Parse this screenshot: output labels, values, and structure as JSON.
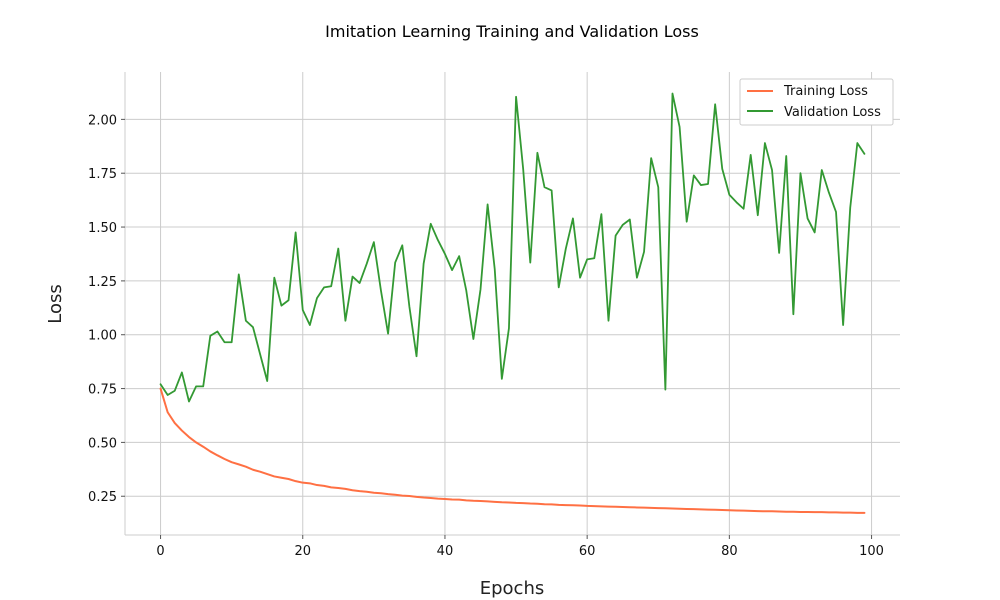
{
  "chart_data": {
    "type": "line",
    "title": "Imitation Learning Training and Validation Loss",
    "xlabel": "Epochs",
    "ylabel": "Loss",
    "xlim": [
      -5,
      104
    ],
    "ylim": [
      0.07,
      2.22
    ],
    "xticks": [
      0,
      20,
      40,
      60,
      80,
      100
    ],
    "yticks": [
      0.25,
      0.5,
      0.75,
      1.0,
      1.25,
      1.5,
      1.75,
      2.0
    ],
    "ytick_labels": [
      "0.25",
      "0.50",
      "0.75",
      "1.00",
      "1.25",
      "1.50",
      "1.75",
      "2.00"
    ],
    "grid": true,
    "legend_position": "top-right",
    "x": [
      0,
      1,
      2,
      3,
      4,
      5,
      6,
      7,
      8,
      9,
      10,
      11,
      12,
      13,
      14,
      15,
      16,
      17,
      18,
      19,
      20,
      21,
      22,
      23,
      24,
      25,
      26,
      27,
      28,
      29,
      30,
      31,
      32,
      33,
      34,
      35,
      36,
      37,
      38,
      39,
      40,
      41,
      42,
      43,
      44,
      45,
      46,
      47,
      48,
      49,
      50,
      51,
      52,
      53,
      54,
      55,
      56,
      57,
      58,
      59,
      60,
      61,
      62,
      63,
      64,
      65,
      66,
      67,
      68,
      69,
      70,
      71,
      72,
      73,
      74,
      75,
      76,
      77,
      78,
      79,
      80,
      81,
      82,
      83,
      84,
      85,
      86,
      87,
      88,
      89,
      90,
      91,
      92,
      93,
      94,
      95,
      96,
      97,
      98,
      99
    ],
    "series": [
      {
        "name": "Training Loss",
        "color": "#ff7043",
        "values": [
          0.75,
          0.64,
          0.59,
          0.555,
          0.525,
          0.5,
          0.48,
          0.458,
          0.44,
          0.423,
          0.408,
          0.398,
          0.387,
          0.373,
          0.364,
          0.353,
          0.342,
          0.336,
          0.33,
          0.32,
          0.313,
          0.31,
          0.302,
          0.298,
          0.291,
          0.288,
          0.284,
          0.278,
          0.274,
          0.271,
          0.266,
          0.264,
          0.26,
          0.257,
          0.253,
          0.251,
          0.247,
          0.244,
          0.242,
          0.239,
          0.237,
          0.235,
          0.234,
          0.231,
          0.229,
          0.228,
          0.226,
          0.224,
          0.222,
          0.221,
          0.219,
          0.218,
          0.216,
          0.215,
          0.213,
          0.212,
          0.21,
          0.209,
          0.208,
          0.207,
          0.205,
          0.204,
          0.203,
          0.202,
          0.201,
          0.2,
          0.199,
          0.198,
          0.197,
          0.196,
          0.195,
          0.194,
          0.193,
          0.192,
          0.191,
          0.19,
          0.189,
          0.188,
          0.187,
          0.186,
          0.185,
          0.184,
          0.183,
          0.182,
          0.181,
          0.18,
          0.18,
          0.179,
          0.178,
          0.178,
          0.177,
          0.177,
          0.176,
          0.176,
          0.175,
          0.175,
          0.174,
          0.174,
          0.173,
          0.173
        ]
      },
      {
        "name": "Validation Loss",
        "color": "#339933",
        "values": [
          0.77,
          0.72,
          0.74,
          0.825,
          0.69,
          0.76,
          0.76,
          0.995,
          1.015,
          0.965,
          0.965,
          1.28,
          1.065,
          1.035,
          0.91,
          0.785,
          1.265,
          1.135,
          1.16,
          1.475,
          1.115,
          1.045,
          1.17,
          1.22,
          1.225,
          1.4,
          1.065,
          1.27,
          1.24,
          1.33,
          1.43,
          1.205,
          1.005,
          1.335,
          1.415,
          1.13,
          0.9,
          1.33,
          1.515,
          1.44,
          1.375,
          1.3,
          1.365,
          1.205,
          0.98,
          1.21,
          1.605,
          1.305,
          0.795,
          1.03,
          2.105,
          1.77,
          1.335,
          1.845,
          1.685,
          1.67,
          1.22,
          1.4,
          1.54,
          1.265,
          1.35,
          1.355,
          1.56,
          1.065,
          1.46,
          1.51,
          1.535,
          1.265,
          1.385,
          1.82,
          1.685,
          0.745,
          2.12,
          1.965,
          1.525,
          1.74,
          1.695,
          1.7,
          2.07,
          1.77,
          1.65,
          1.615,
          1.585,
          1.835,
          1.555,
          1.89,
          1.765,
          1.38,
          1.83,
          1.095,
          1.75,
          1.54,
          1.475,
          1.765,
          1.66,
          1.57,
          1.045,
          1.59,
          1.89,
          1.84
        ]
      }
    ]
  }
}
